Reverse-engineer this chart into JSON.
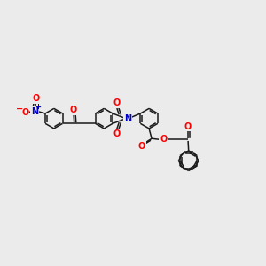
{
  "bg_color": "#ebebeb",
  "bond_color": "#1a1a1a",
  "bond_lw": 1.1,
  "atom_colors": {
    "O": "#ff0000",
    "N": "#0000cc"
  },
  "font_size": 7.0,
  "font_size_small": 5.0,
  "ring_r": 0.38,
  "fig_w": 3.0,
  "fig_h": 3.0,
  "dpi": 100
}
